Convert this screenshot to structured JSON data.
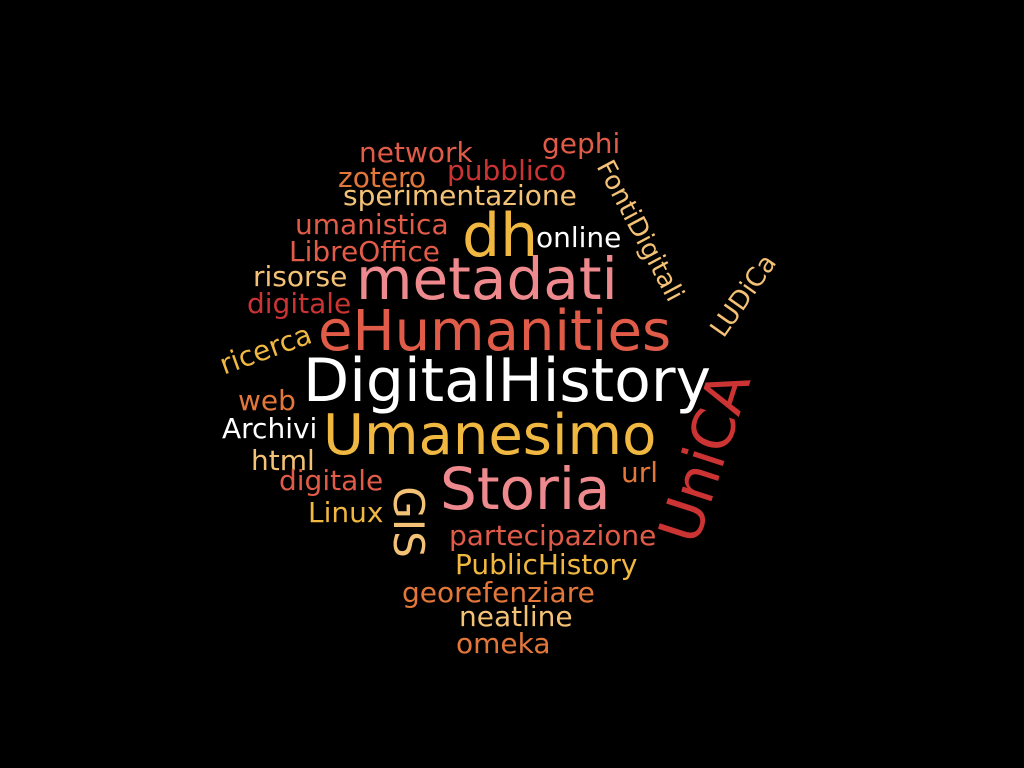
{
  "palette": {
    "background": "#000000",
    "white": "#ffffff",
    "gold": "#f0b841",
    "salmon": "#e05b48",
    "red": "#cc3333",
    "pink": "#ee8a8e",
    "orange": "#e3773a",
    "light_gold": "#f4c276"
  },
  "words": [
    {
      "text": "DigitalHistory",
      "color": "white"
    },
    {
      "text": "Umanesimo",
      "color": "gold"
    },
    {
      "text": "eHumanities",
      "color": "salmon"
    },
    {
      "text": "metadati",
      "color": "pink"
    },
    {
      "text": "Storia",
      "color": "pink"
    },
    {
      "text": "UniCA",
      "color": "red"
    },
    {
      "text": "dh",
      "color": "gold"
    },
    {
      "text": "GIS",
      "color": "light_gold"
    },
    {
      "text": "FontiDigitali",
      "color": "light_gold"
    },
    {
      "text": "LUDiCa",
      "color": "light_gold"
    },
    {
      "text": "network",
      "color": "salmon"
    },
    {
      "text": "gephi",
      "color": "salmon"
    },
    {
      "text": "pubblico",
      "color": "red"
    },
    {
      "text": "zotero",
      "color": "orange"
    },
    {
      "text": "sperimentazione",
      "color": "light_gold"
    },
    {
      "text": "umanistica",
      "color": "salmon"
    },
    {
      "text": "online",
      "color": "white"
    },
    {
      "text": "LibreOffice",
      "color": "salmon"
    },
    {
      "text": "risorse",
      "color": "light_gold"
    },
    {
      "text": "digitale",
      "color": "red"
    },
    {
      "text": "ricerca",
      "color": "gold"
    },
    {
      "text": "web",
      "color": "orange"
    },
    {
      "text": "Archivi",
      "color": "white"
    },
    {
      "text": "html",
      "color": "light_gold"
    },
    {
      "text": "digitale",
      "color": "salmon"
    },
    {
      "text": "Linux",
      "color": "gold"
    },
    {
      "text": "url",
      "color": "orange"
    },
    {
      "text": "partecipazione",
      "color": "salmon"
    },
    {
      "text": "PublicHistory",
      "color": "gold"
    },
    {
      "text": "georefenziare",
      "color": "orange"
    },
    {
      "text": "neatline",
      "color": "light_gold"
    },
    {
      "text": "omeka",
      "color": "orange"
    }
  ]
}
